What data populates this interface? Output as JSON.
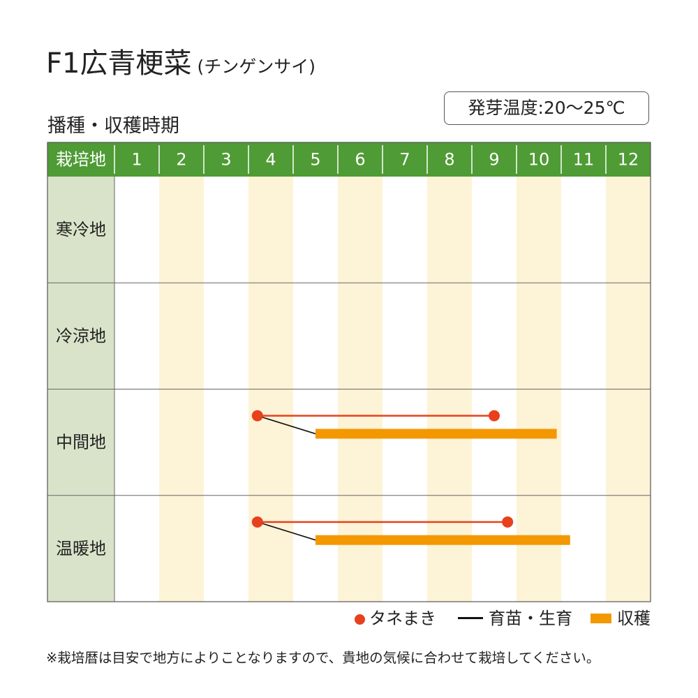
{
  "header": {
    "title": "F1広青梗菜",
    "title_sub": "(チンゲンサイ)",
    "section_label": "播種・収穫時期",
    "germination_temp": "発芽温度:20〜25℃"
  },
  "chart_data": {
    "type": "gantt",
    "row_header_label": "栽培地",
    "months": [
      "1",
      "2",
      "3",
      "4",
      "5",
      "6",
      "7",
      "8",
      "9",
      "10",
      "11",
      "12"
    ],
    "rows": [
      {
        "region": "寒冷地",
        "sowing": null,
        "harvest": null
      },
      {
        "region": "冷涼地",
        "sowing": null,
        "harvest": null
      },
      {
        "region": "中間地",
        "sowing": [
          4.2,
          9.5
        ],
        "harvest": [
          5.5,
          10.9
        ]
      },
      {
        "region": "温暖地",
        "sowing": [
          4.2,
          9.8
        ],
        "harvest": [
          5.5,
          11.2
        ]
      }
    ],
    "colors": {
      "header_green": "#4f9b35",
      "region_bg": "#d9e3c9",
      "stripe": "#fdf3d6",
      "sowing": "#e8401c",
      "growing": "#111111",
      "harvest": "#f39800"
    }
  },
  "legend": {
    "sowing": "タネまき",
    "growing": "育苗・生育",
    "harvest": "収穫"
  },
  "note": "※栽培暦は目安で地方によりことなりますので、貴地の気候に合わせて栽培してください。"
}
